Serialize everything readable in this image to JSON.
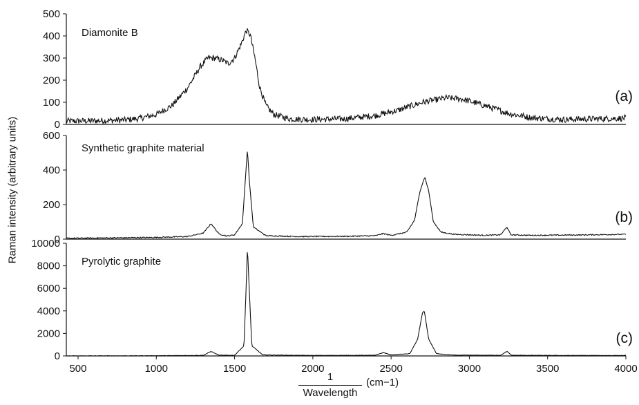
{
  "chart_data": {
    "type": "line",
    "ylabel": "Raman intensity (arbitrary units)",
    "xlabel": {
      "numerator": "1",
      "denominator": "Wavelength",
      "unit": "(cm−1)"
    },
    "xlim": [
      425,
      4000
    ],
    "xticks": [
      500,
      1000,
      1500,
      2000,
      2500,
      3000,
      3500,
      4000
    ],
    "panels": [
      {
        "id": "a",
        "tag": "(a)",
        "title": "Diamonite B",
        "ylim": [
          0,
          500
        ],
        "yticks": [
          0,
          100,
          200,
          300,
          400,
          500
        ],
        "noise": 14,
        "series": [
          {
            "x": 425,
            "y": 15
          },
          {
            "x": 600,
            "y": 16
          },
          {
            "x": 800,
            "y": 20
          },
          {
            "x": 900,
            "y": 28
          },
          {
            "x": 1000,
            "y": 45
          },
          {
            "x": 1100,
            "y": 85
          },
          {
            "x": 1200,
            "y": 165
          },
          {
            "x": 1280,
            "y": 260
          },
          {
            "x": 1330,
            "y": 300
          },
          {
            "x": 1370,
            "y": 300
          },
          {
            "x": 1420,
            "y": 290
          },
          {
            "x": 1460,
            "y": 275
          },
          {
            "x": 1500,
            "y": 300
          },
          {
            "x": 1540,
            "y": 360
          },
          {
            "x": 1575,
            "y": 425
          },
          {
            "x": 1600,
            "y": 405
          },
          {
            "x": 1630,
            "y": 300
          },
          {
            "x": 1660,
            "y": 170
          },
          {
            "x": 1700,
            "y": 85
          },
          {
            "x": 1750,
            "y": 45
          },
          {
            "x": 1850,
            "y": 25
          },
          {
            "x": 2000,
            "y": 22
          },
          {
            "x": 2200,
            "y": 25
          },
          {
            "x": 2400,
            "y": 40
          },
          {
            "x": 2550,
            "y": 65
          },
          {
            "x": 2700,
            "y": 100
          },
          {
            "x": 2850,
            "y": 120
          },
          {
            "x": 2950,
            "y": 115
          },
          {
            "x": 3100,
            "y": 85
          },
          {
            "x": 3250,
            "y": 50
          },
          {
            "x": 3400,
            "y": 30
          },
          {
            "x": 3600,
            "y": 22
          },
          {
            "x": 3800,
            "y": 25
          },
          {
            "x": 4000,
            "y": 28
          }
        ]
      },
      {
        "id": "b",
        "tag": "(b)",
        "title": "Synthetic graphite material",
        "ylim": [
          0,
          600
        ],
        "yticks": [
          0,
          200,
          400,
          600
        ],
        "noise": 3,
        "series": [
          {
            "x": 425,
            "y": 5
          },
          {
            "x": 800,
            "y": 8
          },
          {
            "x": 1000,
            "y": 10
          },
          {
            "x": 1200,
            "y": 15
          },
          {
            "x": 1300,
            "y": 35
          },
          {
            "x": 1350,
            "y": 90
          },
          {
            "x": 1400,
            "y": 30
          },
          {
            "x": 1450,
            "y": 18
          },
          {
            "x": 1500,
            "y": 25
          },
          {
            "x": 1550,
            "y": 90
          },
          {
            "x": 1570,
            "y": 360
          },
          {
            "x": 1582,
            "y": 520
          },
          {
            "x": 1595,
            "y": 330
          },
          {
            "x": 1620,
            "y": 70
          },
          {
            "x": 1700,
            "y": 20
          },
          {
            "x": 1900,
            "y": 15
          },
          {
            "x": 2200,
            "y": 16
          },
          {
            "x": 2400,
            "y": 20
          },
          {
            "x": 2450,
            "y": 32
          },
          {
            "x": 2500,
            "y": 22
          },
          {
            "x": 2600,
            "y": 40
          },
          {
            "x": 2650,
            "y": 110
          },
          {
            "x": 2685,
            "y": 280
          },
          {
            "x": 2715,
            "y": 360
          },
          {
            "x": 2740,
            "y": 280
          },
          {
            "x": 2770,
            "y": 100
          },
          {
            "x": 2820,
            "y": 40
          },
          {
            "x": 2900,
            "y": 28
          },
          {
            "x": 3100,
            "y": 22
          },
          {
            "x": 3200,
            "y": 25
          },
          {
            "x": 3240,
            "y": 70
          },
          {
            "x": 3265,
            "y": 25
          },
          {
            "x": 3400,
            "y": 22
          },
          {
            "x": 3700,
            "y": 24
          },
          {
            "x": 4000,
            "y": 28
          }
        ]
      },
      {
        "id": "c",
        "tag": "(c)",
        "title": "Pyrolytic graphite",
        "ylim": [
          0,
          10000
        ],
        "yticks": [
          0,
          2000,
          4000,
          6000,
          8000,
          10000
        ],
        "noise": 20,
        "series": [
          {
            "x": 425,
            "y": 0
          },
          {
            "x": 800,
            "y": 10
          },
          {
            "x": 1000,
            "y": 20
          },
          {
            "x": 1300,
            "y": 50
          },
          {
            "x": 1350,
            "y": 400
          },
          {
            "x": 1400,
            "y": 60
          },
          {
            "x": 1500,
            "y": 60
          },
          {
            "x": 1560,
            "y": 900
          },
          {
            "x": 1575,
            "y": 6500
          },
          {
            "x": 1582,
            "y": 9700
          },
          {
            "x": 1592,
            "y": 6500
          },
          {
            "x": 1610,
            "y": 900
          },
          {
            "x": 1680,
            "y": 90
          },
          {
            "x": 2000,
            "y": 40
          },
          {
            "x": 2400,
            "y": 60
          },
          {
            "x": 2450,
            "y": 300
          },
          {
            "x": 2500,
            "y": 90
          },
          {
            "x": 2620,
            "y": 200
          },
          {
            "x": 2670,
            "y": 1500
          },
          {
            "x": 2700,
            "y": 3800
          },
          {
            "x": 2712,
            "y": 4000
          },
          {
            "x": 2740,
            "y": 1500
          },
          {
            "x": 2790,
            "y": 200
          },
          {
            "x": 2900,
            "y": 70
          },
          {
            "x": 3200,
            "y": 60
          },
          {
            "x": 3240,
            "y": 400
          },
          {
            "x": 3270,
            "y": 60
          },
          {
            "x": 3600,
            "y": 40
          },
          {
            "x": 4000,
            "y": 40
          }
        ]
      }
    ]
  }
}
